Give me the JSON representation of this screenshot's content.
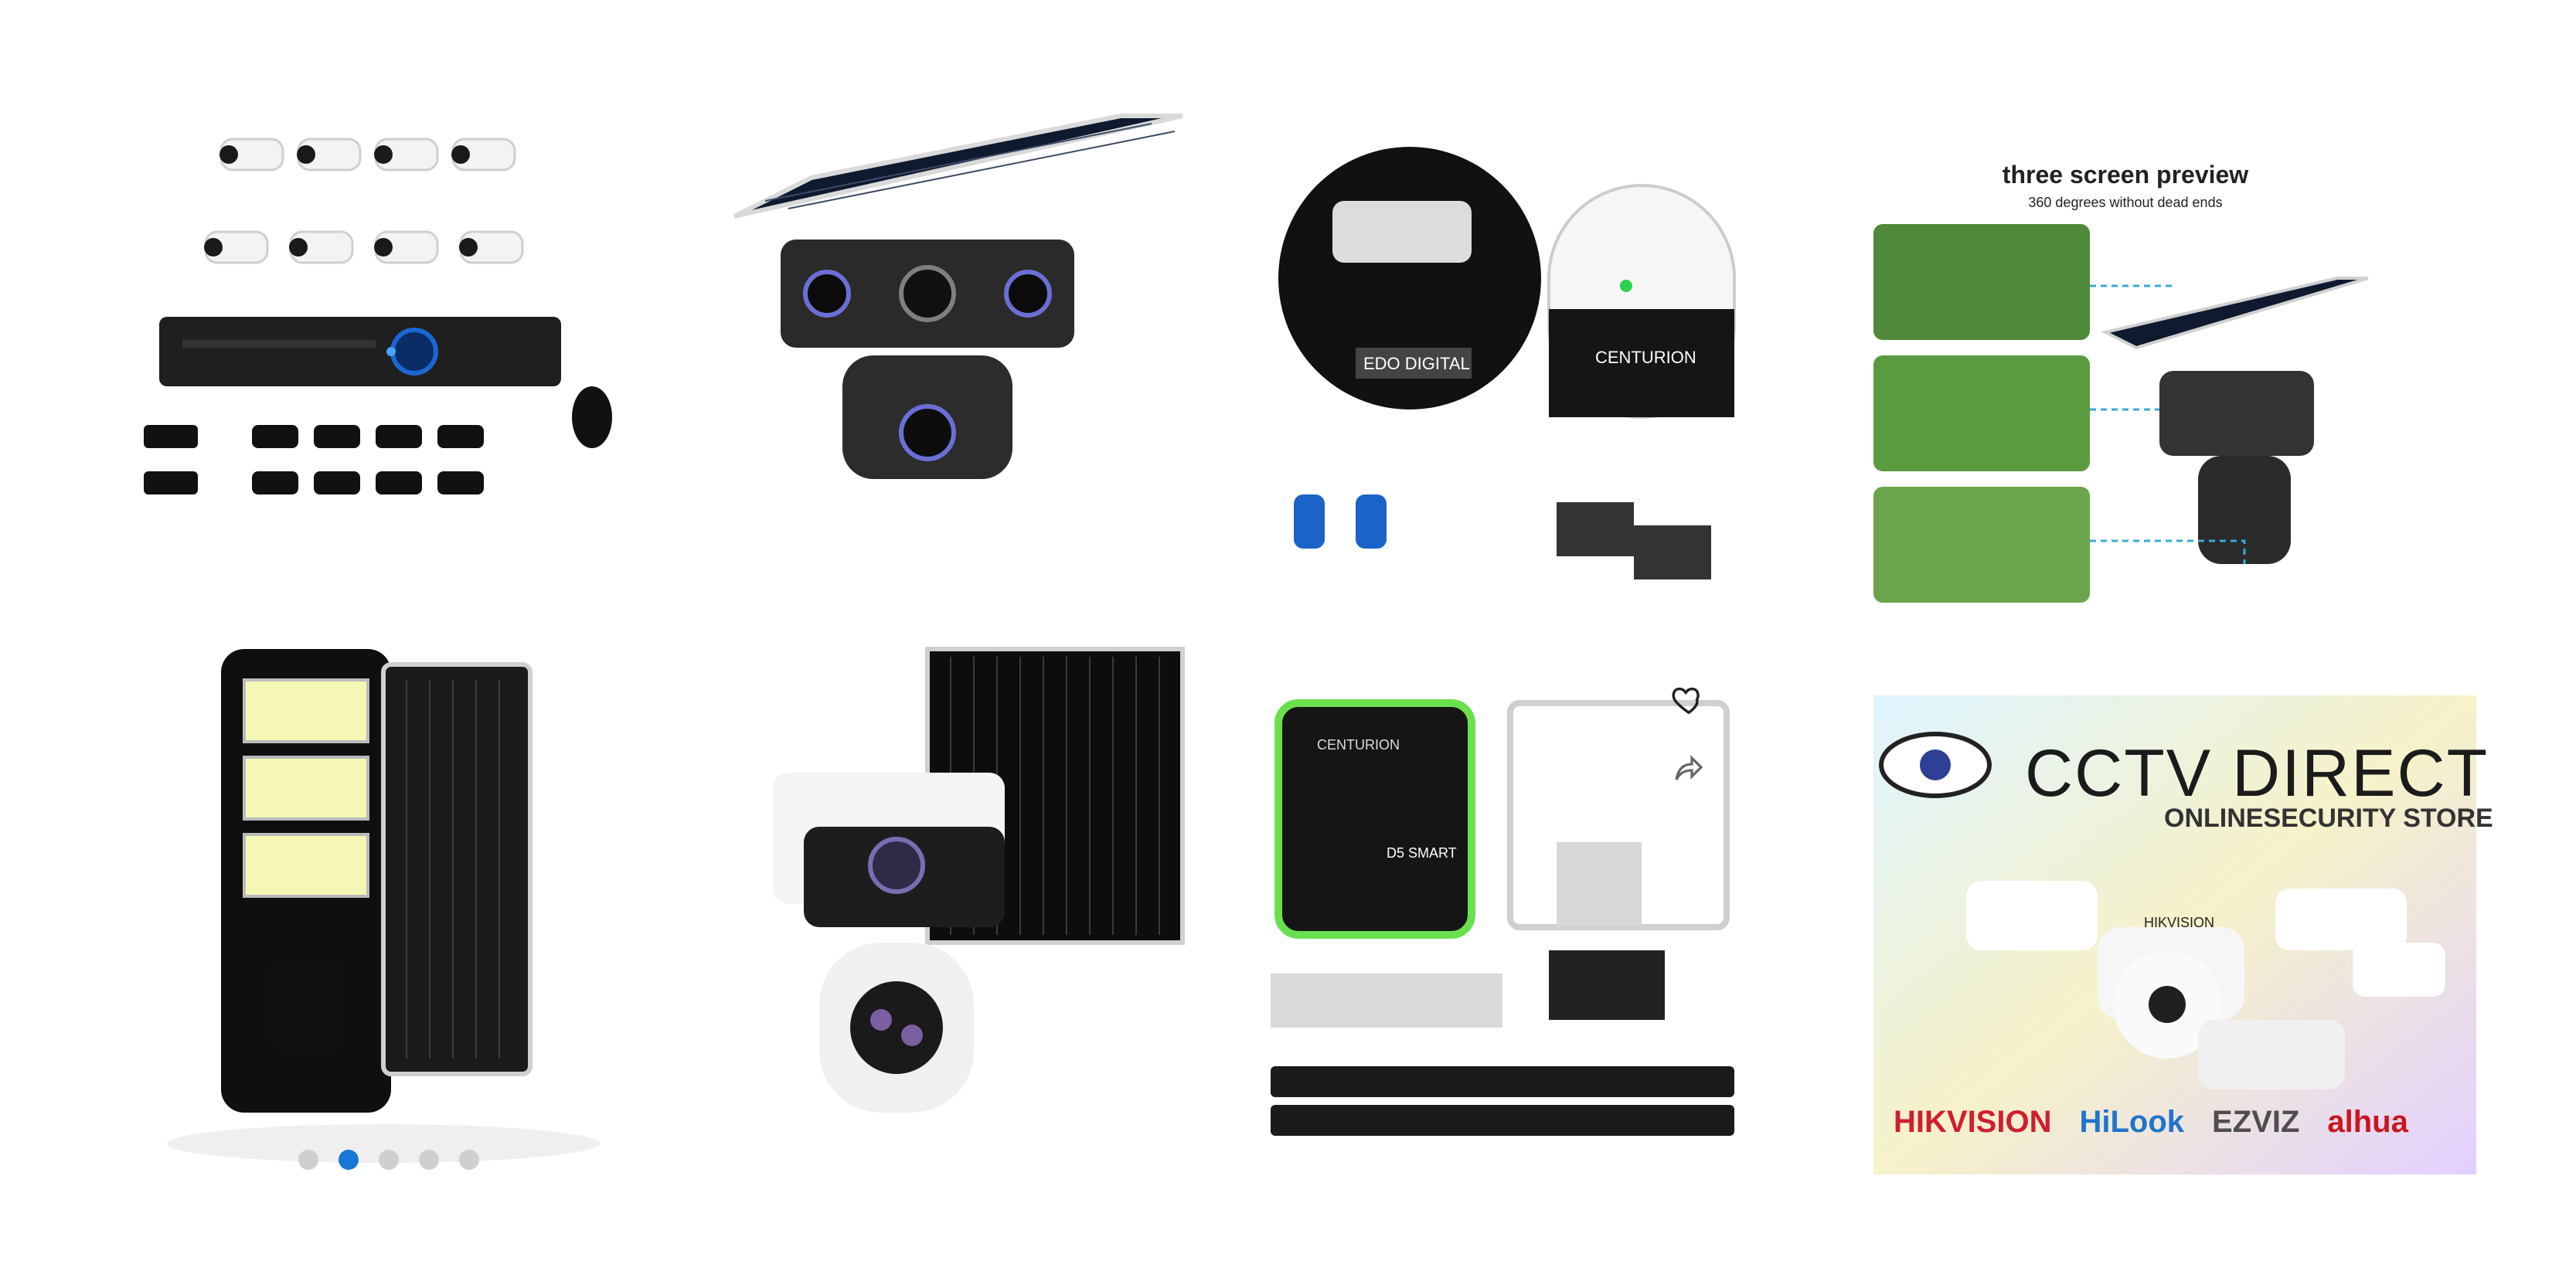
{
  "product_grid": {
    "items": [
      {
        "alt": "8-camera CCTV kit with DVR"
      },
      {
        "alt": "solar dual-lens PTZ camera"
      },
      {
        "alt": "Centurion gate motor kit"
      },
      {
        "alt": "three screen preview solar camera"
      },
      {
        "alt": "solar street light"
      },
      {
        "alt": "solar dual-lens PTZ camera with panel"
      },
      {
        "alt": "Centurion D5 Smart gate motor kit"
      },
      {
        "alt": "CCTV Direct online security store banner"
      }
    ]
  },
  "carousel": {
    "dots": 5,
    "active_index": 1
  },
  "preview_card": {
    "title": "three screen preview",
    "subtitle": "360 degrees without dead ends"
  },
  "gate_card": {
    "brand_label": "CENTURION",
    "model_label": "D5 SMART"
  },
  "kit_card": {
    "label": "EDO DIGITAL",
    "brand_label": "CENTURION"
  },
  "brand_card": {
    "title": "CCTV DIRECT",
    "subtitle": "ONLINESECURITY STORE",
    "logos": [
      "HIKVISION",
      "HiLook",
      "EZVIZ",
      "alhua"
    ],
    "camera_label": "HIKVISION"
  },
  "colors": {
    "accent": "#1677d4",
    "inactive_dot": "#cfcfcf",
    "hikvision_red": "#d01e2f",
    "hilook_blue": "#1f75c9",
    "ezviz_gray": "#4f4f4f",
    "dahua_red": "#c9161d"
  },
  "icons": {
    "heart": "heart-icon",
    "share": "share-icon"
  }
}
